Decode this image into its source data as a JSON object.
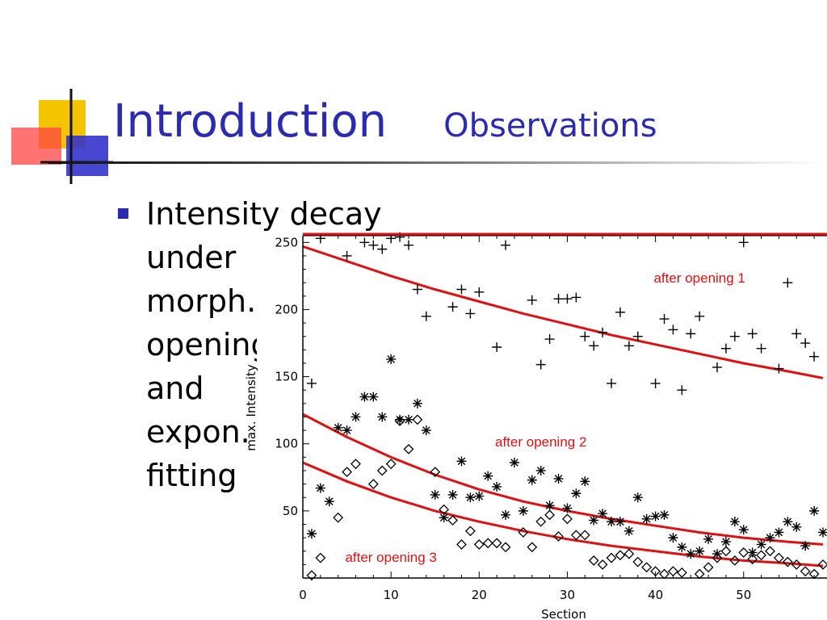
{
  "slide": {
    "title": "Introduction",
    "subtitle": "Observations",
    "bullet_lines": [
      "Intensity decay",
      "under",
      "morph.",
      "opening",
      "and",
      "expon.",
      "fitting"
    ]
  },
  "colors": {
    "title": "#2b2bb0",
    "fit_curve": "#dd1111",
    "marker": "#000000",
    "logo_yellow": "#f5c400",
    "logo_red": "#ff4444",
    "logo_blue": "#3333cc"
  },
  "chart_data": {
    "type": "scatter",
    "title": "",
    "xlabel": "Section",
    "ylabel": "max. Intensity",
    "xlim": [
      0,
      59
    ],
    "ylim": [
      0,
      255
    ],
    "xticks": [
      0,
      10,
      20,
      30,
      40,
      50
    ],
    "yticks": [
      50,
      100,
      150,
      200,
      250
    ],
    "grid": false,
    "series": [
      {
        "marker": "plus",
        "x": [
          1,
          2,
          5,
          7,
          8,
          9,
          10,
          11,
          12,
          13,
          14,
          17,
          18,
          19,
          20,
          22,
          23,
          26,
          27,
          28,
          29,
          30,
          31,
          32,
          33,
          34,
          35,
          36,
          37,
          38,
          40,
          41,
          42,
          43,
          44,
          45,
          47,
          48,
          49,
          50,
          51,
          52,
          54,
          55,
          56,
          57,
          58
        ],
        "y": [
          145,
          253,
          240,
          250,
          248,
          245,
          253,
          254,
          248,
          215,
          195,
          202,
          215,
          197,
          213,
          172,
          248,
          207,
          159,
          178,
          208,
          208,
          209,
          180,
          173,
          183,
          145,
          198,
          173,
          180,
          145,
          193,
          185,
          140,
          182,
          195,
          157,
          171,
          180,
          250,
          182,
          171,
          156,
          220,
          182,
          175,
          165
        ]
      },
      {
        "marker": "asterisk",
        "x": [
          1,
          2,
          3,
          4,
          5,
          6,
          7,
          8,
          9,
          10,
          11,
          12,
          13,
          14,
          15,
          16,
          17,
          18,
          19,
          20,
          21,
          22,
          23,
          24,
          25,
          26,
          27,
          28,
          29,
          30,
          31,
          32,
          33,
          34,
          35,
          36,
          37,
          38,
          39,
          40,
          41,
          42,
          43,
          44,
          45,
          46,
          47,
          48,
          49,
          50,
          51,
          52,
          53,
          54,
          55,
          56,
          57,
          58,
          59
        ],
        "y": [
          33,
          67,
          57,
          112,
          110,
          120,
          135,
          135,
          120,
          163,
          118,
          118,
          130,
          110,
          62,
          45,
          62,
          87,
          60,
          61,
          76,
          68,
          47,
          86,
          50,
          73,
          80,
          54,
          74,
          52,
          63,
          72,
          43,
          48,
          42,
          42,
          35,
          60,
          44,
          46,
          47,
          30,
          23,
          18,
          20,
          29,
          18,
          27,
          42,
          36,
          19,
          25,
          30,
          34,
          42,
          38,
          24,
          50,
          34
        ]
      },
      {
        "marker": "diamond",
        "x": [
          1,
          2,
          4,
          5,
          6,
          8,
          9,
          10,
          11,
          12,
          13,
          15,
          16,
          17,
          18,
          19,
          20,
          21,
          22,
          23,
          25,
          26,
          27,
          28,
          29,
          30,
          31,
          32,
          33,
          34,
          35,
          36,
          37,
          38,
          39,
          40,
          41,
          42,
          43,
          45,
          46,
          47,
          48,
          49,
          50,
          51,
          52,
          53,
          54,
          55,
          56,
          57,
          58,
          59
        ],
        "y": [
          2,
          15,
          45,
          79,
          85,
          70,
          80,
          85,
          117,
          96,
          118,
          79,
          51,
          43,
          25,
          35,
          25,
          26,
          26,
          23,
          34,
          23,
          42,
          47,
          31,
          44,
          32,
          32,
          13,
          10,
          15,
          17,
          18,
          12,
          8,
          5,
          3,
          5,
          4,
          3,
          8,
          15,
          20,
          13,
          19,
          14,
          17,
          20,
          15,
          12,
          10,
          5,
          3,
          10
        ]
      }
    ],
    "fits": [
      {
        "x": [
          0,
          5,
          10,
          15,
          20,
          25,
          30,
          35,
          40,
          45,
          50,
          55,
          59
        ],
        "y": [
          247,
          236,
          225,
          215,
          206,
          197,
          189,
          181,
          174,
          167,
          160,
          154,
          149
        ]
      },
      {
        "x": [
          0,
          5,
          10,
          15,
          20,
          25,
          30,
          35,
          40,
          45,
          50,
          55,
          59
        ],
        "y": [
          122,
          105,
          90,
          77,
          66,
          57,
          50,
          44,
          39,
          34,
          30,
          27,
          25
        ]
      },
      {
        "x": [
          0,
          5,
          10,
          15,
          20,
          25,
          30,
          35,
          40,
          45,
          50,
          55,
          59
        ],
        "y": [
          86,
          72,
          60,
          50,
          42,
          35,
          29,
          24,
          20,
          16,
          13,
          11,
          9
        ]
      }
    ],
    "annotations": [
      {
        "text": "after opening 1",
        "x": 45,
        "y": 220
      },
      {
        "text": "after opening 2",
        "x": 27,
        "y": 98
      },
      {
        "text": "after opening 3",
        "x": 10,
        "y": 12
      }
    ]
  }
}
